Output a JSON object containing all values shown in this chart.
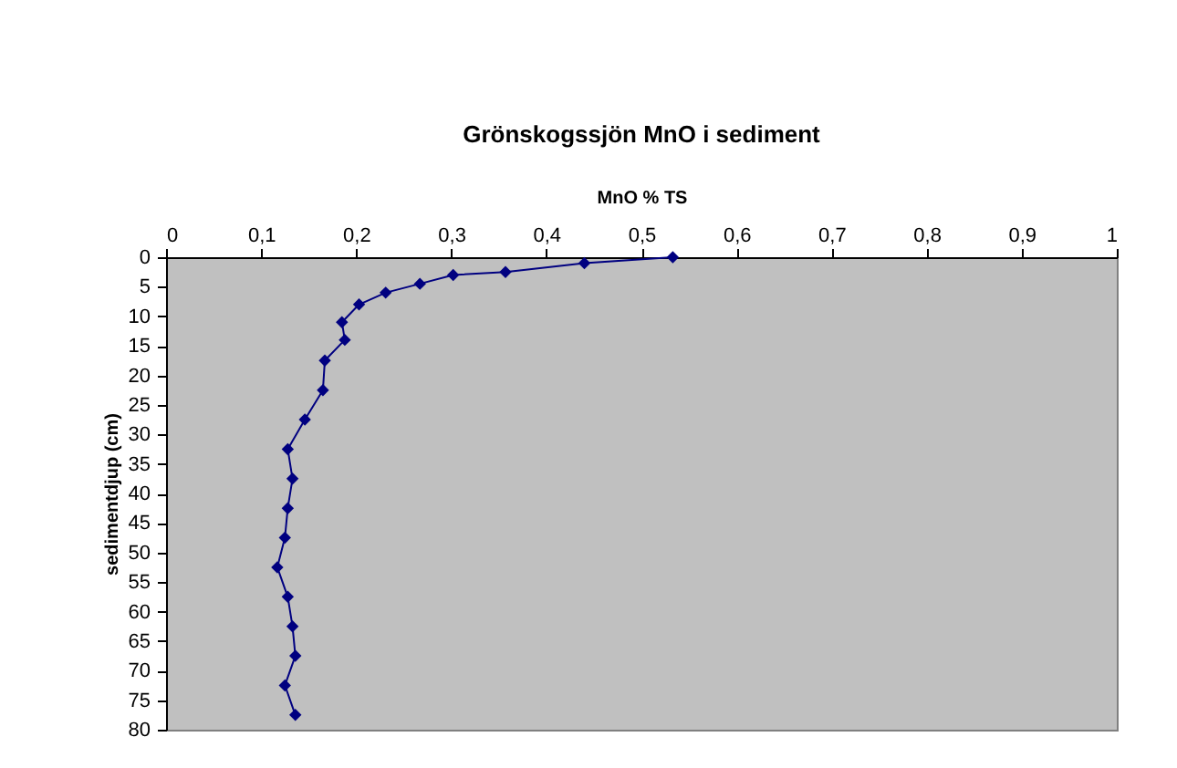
{
  "chart_data": {
    "type": "line",
    "title": "Grönskogssjön MnO i sediment",
    "xlabel": "MnO % TS",
    "ylabel": "sedimentdjup (cm)",
    "series": [
      {
        "color": "#000080",
        "x": [
          0.533,
          0.44,
          0.357,
          0.302,
          0.267,
          0.231,
          0.203,
          0.185,
          0.188,
          0.167,
          0.165,
          0.146,
          0.128,
          0.133,
          0.128,
          0.125,
          0.117,
          0.128,
          0.133,
          0.136,
          0.125,
          0.136
        ],
        "values": [
          0,
          1,
          2.5,
          3,
          4.5,
          6,
          8,
          11,
          14,
          17.5,
          22.5,
          27.5,
          32.5,
          37.5,
          42.5,
          47.5,
          52.5,
          57.5,
          62.5,
          67.5,
          72.5,
          77.5
        ]
      }
    ],
    "xlim": [
      0,
      1
    ],
    "xticks": [
      0,
      {
        "value": 0.1,
        "label": "0,1"
      },
      {
        "value": 0.2,
        "label": "0,2"
      },
      {
        "value": 0.3,
        "label": "0,3"
      },
      {
        "value": 0.4,
        "label": "0,4"
      },
      {
        "value": 0.5,
        "label": "0,5"
      },
      {
        "value": 0.6,
        "label": "0,6"
      },
      {
        "value": 0.7,
        "label": "0,7"
      },
      {
        "value": 0.8,
        "label": "0,8"
      },
      {
        "value": 0.9,
        "label": "0,9"
      },
      1
    ],
    "ylim": [
      80,
      0
    ],
    "yticks": [
      0,
      5,
      10,
      15,
      20,
      25,
      30,
      35,
      40,
      45,
      50,
      55,
      60,
      65,
      70,
      75,
      80
    ],
    "marker": "diamond",
    "line_style": "solid",
    "grid": false
  }
}
